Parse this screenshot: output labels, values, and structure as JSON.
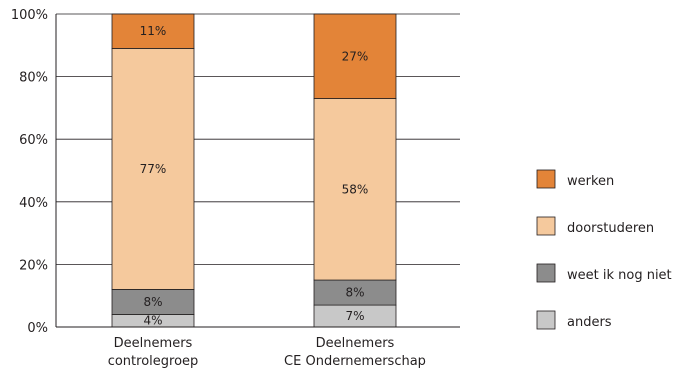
{
  "chart_data": {
    "type": "bar",
    "stacked": true,
    "categories": [
      [
        "Deelnemers",
        "controlegroep"
      ],
      [
        "Deelnemers",
        "CE Ondernemerschap"
      ]
    ],
    "series": [
      {
        "name": "anders",
        "values": [
          4,
          7
        ],
        "labels": [
          "4%",
          "7%"
        ],
        "color": "#c8c8c8"
      },
      {
        "name": "weet ik nog niet",
        "values": [
          8,
          8
        ],
        "labels": [
          "8%",
          "8%"
        ],
        "color": "#8c8c8c"
      },
      {
        "name": "doorstuderen",
        "values": [
          77,
          58
        ],
        "labels": [
          "77%",
          "58%"
        ],
        "color": "#f5c99d"
      },
      {
        "name": "werken",
        "values": [
          11,
          27
        ],
        "labels": [
          "11%",
          "27%"
        ],
        "color": "#e38438"
      }
    ],
    "legend_order": [
      "werken",
      "doorstuderen",
      "weet ik nog niet",
      "anders"
    ],
    "ylim": [
      0,
      100
    ],
    "yticks": [
      0,
      20,
      40,
      60,
      80,
      100
    ],
    "ytick_labels": [
      "0%",
      "20%",
      "40%",
      "60%",
      "80%",
      "100%"
    ],
    "grid": true,
    "legend_position": "right"
  }
}
